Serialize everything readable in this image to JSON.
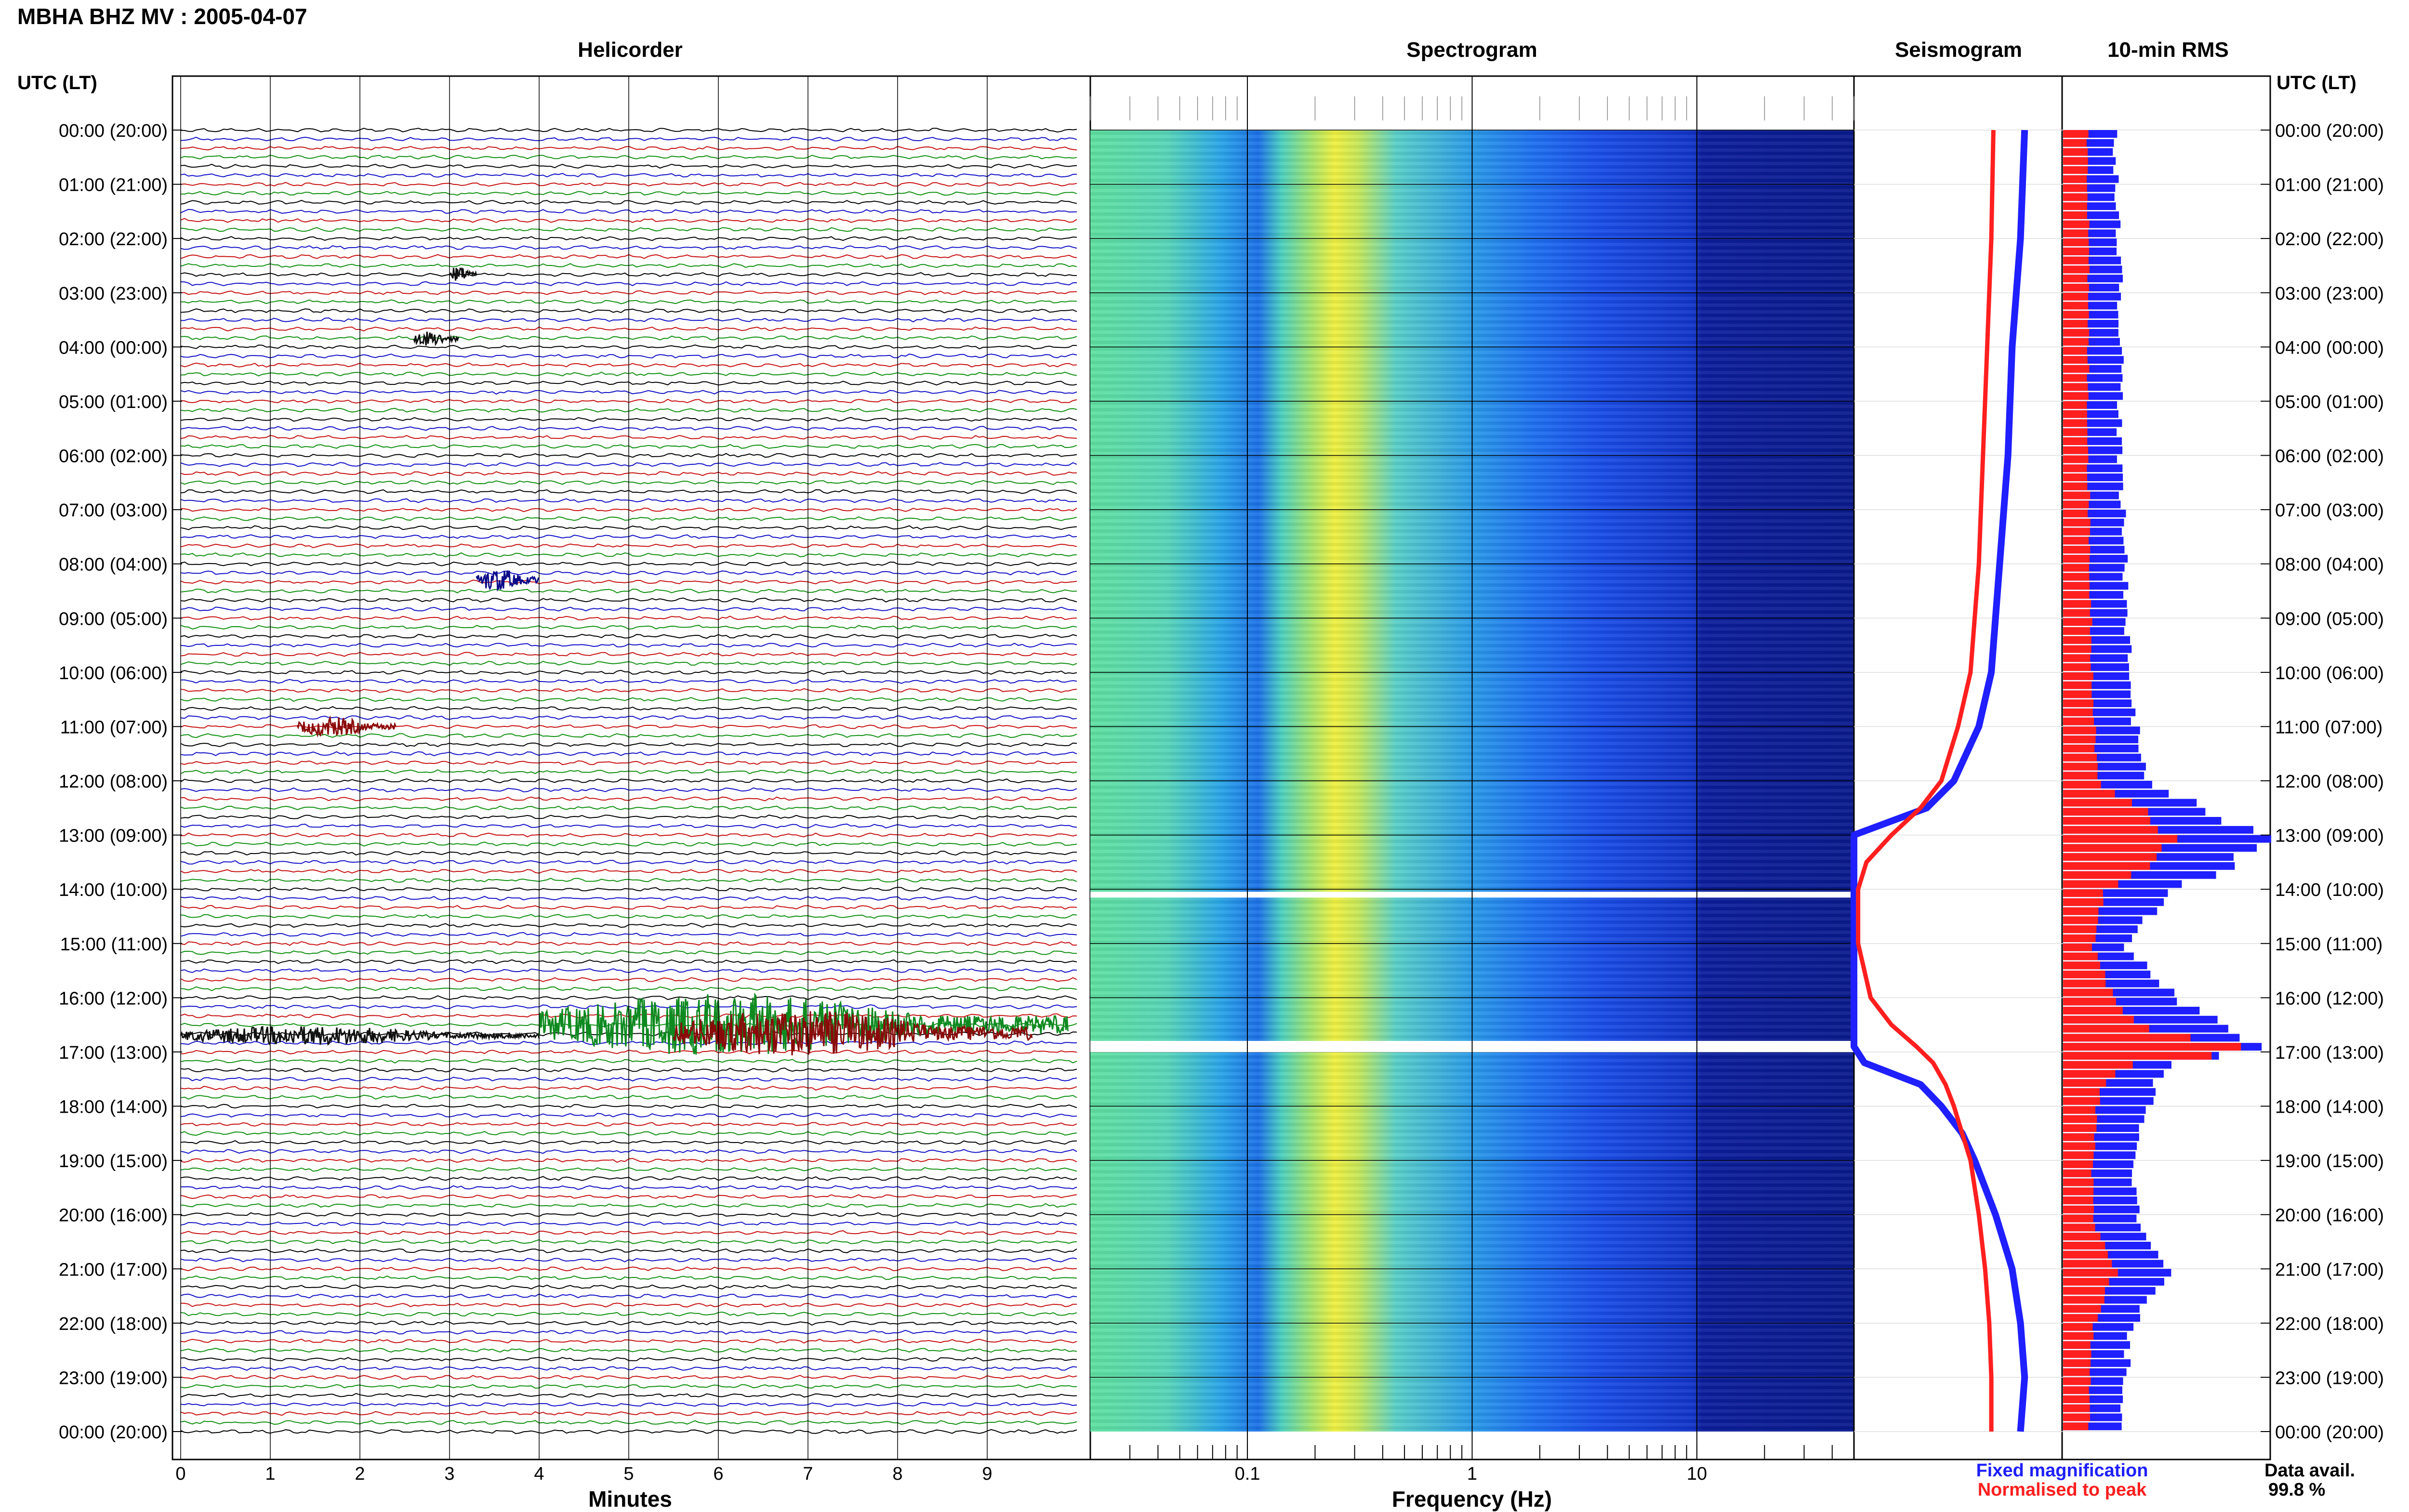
{
  "header": {
    "title": "MBHA BHZ MV : 2005-04-07"
  },
  "panels": {
    "helicorder": "Helicorder",
    "spectrogram": "Spectrogram",
    "seismogram": "Seismogram",
    "rms": "10-min RMS"
  },
  "axes": {
    "utc_lt_left": "UTC (LT)",
    "utc_lt_right": "UTC (LT)",
    "minutes_label": "Minutes",
    "frequency_label": "Frequency (Hz)"
  },
  "legend": {
    "fixed": "Fixed magnification",
    "normalised": "Normalised to peak",
    "fixed_color": "#1f1fff",
    "normalised_color": "#ff1f1f"
  },
  "availability": {
    "label": "Data avail.",
    "value": "99.8 %"
  },
  "chart_data": [
    {
      "type": "line",
      "title": "Helicorder",
      "xlabel": "Minutes",
      "x_ticks": [
        "0",
        "1",
        "2",
        "3",
        "4",
        "5",
        "6",
        "7",
        "8",
        "9"
      ],
      "xlim": [
        0,
        10
      ],
      "rows_per_hour": 6,
      "row_colors": [
        "#000000",
        "#1010c8",
        "#c81010",
        "#109010"
      ],
      "y_ticks_left": [
        "00:00 (20:00)",
        "01:00 (21:00)",
        "02:00 (22:00)",
        "03:00 (23:00)",
        "04:00 (00:00)",
        "05:00 (01:00)",
        "06:00 (02:00)",
        "07:00 (03:00)",
        "08:00 (04:00)",
        "09:00 (05:00)",
        "10:00 (06:00)",
        "11:00 (07:00)",
        "12:00 (08:00)",
        "13:00 (09:00)",
        "14:00 (10:00)",
        "15:00 (11:00)",
        "16:00 (12:00)",
        "17:00 (13:00)",
        "18:00 (14:00)",
        "19:00 (15:00)",
        "20:00 (16:00)",
        "21:00 (17:00)",
        "22:00 (18:00)",
        "23:00 (19:00)",
        "00:00 (20:00)"
      ],
      "events": [
        {
          "hour": 16.7,
          "start_min": 0.0,
          "end_min": 4.0,
          "amplitude": 0.25
        },
        {
          "hour": 16.5,
          "start_min": 4.0,
          "end_min": 9.9,
          "amplitude": 0.8
        },
        {
          "hour": 16.65,
          "start_min": 5.5,
          "end_min": 9.5,
          "amplitude": 0.6
        },
        {
          "hour": 8.3,
          "start_min": 3.3,
          "end_min": 4.0,
          "amplitude": 0.3
        },
        {
          "hour": 11.0,
          "start_min": 1.3,
          "end_min": 2.4,
          "amplitude": 0.25
        },
        {
          "hour": 3.85,
          "start_min": 2.6,
          "end_min": 3.1,
          "amplitude": 0.2
        },
        {
          "hour": 2.65,
          "start_min": 3.0,
          "end_min": 3.3,
          "amplitude": 0.2
        }
      ]
    },
    {
      "type": "heatmap",
      "title": "Spectrogram",
      "xlabel": "Frequency (Hz)",
      "x_scale": "log",
      "xlim": [
        0.02,
        50
      ],
      "x_ticks": [
        0.1,
        1,
        10
      ],
      "x_tick_labels": [
        "0.1",
        "1",
        "10"
      ],
      "peak_frequency_hz": 0.25,
      "gaps_hours": [
        14.1,
        16.85,
        16.95
      ]
    },
    {
      "type": "line",
      "title": "Seismogram",
      "series": [
        {
          "name": "Fixed magnification",
          "color": "#1f1fff",
          "hours": [
            0,
            2,
            4,
            6,
            8,
            10,
            11,
            12,
            12.5,
            13.0,
            13.5,
            14,
            15,
            16,
            16.5,
            16.9,
            17.2,
            17.6,
            18,
            18.5,
            19,
            20,
            21,
            22,
            23,
            24
          ],
          "values": [
            0.82,
            0.8,
            0.76,
            0.74,
            0.7,
            0.66,
            0.6,
            0.48,
            0.35,
            0.0,
            0.0,
            0.0,
            0.0,
            0.0,
            0.0,
            0.0,
            0.05,
            0.32,
            0.42,
            0.52,
            0.58,
            0.68,
            0.76,
            0.8,
            0.82,
            0.8
          ]
        },
        {
          "name": "Normalised to peak",
          "color": "#ff1f1f",
          "hours": [
            0,
            2,
            4,
            6,
            8,
            10,
            11,
            12,
            12.5,
            13.0,
            13.5,
            14,
            15,
            16,
            16.5,
            16.9,
            17.2,
            17.6,
            18,
            18.5,
            19,
            20,
            21,
            22,
            23,
            24
          ],
          "values": [
            0.67,
            0.66,
            0.64,
            0.62,
            0.6,
            0.56,
            0.5,
            0.42,
            0.32,
            0.18,
            0.06,
            0.02,
            0.02,
            0.08,
            0.18,
            0.3,
            0.38,
            0.44,
            0.48,
            0.52,
            0.56,
            0.6,
            0.63,
            0.65,
            0.66,
            0.66
          ]
        }
      ]
    },
    {
      "type": "bar",
      "title": "10-min RMS",
      "orientation": "horizontal",
      "series": [
        {
          "name": "Fixed magnification",
          "color": "#1f1fff",
          "hours": [
            0,
            2,
            4,
            6,
            8,
            10,
            11,
            12,
            12.5,
            13,
            13.5,
            14,
            15,
            16,
            16.5,
            16.9,
            17.1,
            17.5,
            18,
            19,
            20,
            21,
            22,
            23,
            24
          ],
          "values": [
            0.25,
            0.27,
            0.28,
            0.27,
            0.3,
            0.32,
            0.35,
            0.42,
            0.7,
            1.0,
            0.8,
            0.5,
            0.3,
            0.55,
            0.8,
            1.0,
            0.55,
            0.45,
            0.4,
            0.35,
            0.35,
            0.5,
            0.32,
            0.3,
            0.28
          ]
        },
        {
          "name": "Normalised to peak",
          "color": "#ff1f1f",
          "hours": [
            0,
            2,
            4,
            6,
            8,
            10,
            11,
            12,
            12.5,
            13,
            13.5,
            14,
            15,
            16,
            16.5,
            16.9,
            17.1,
            17.5,
            18,
            19,
            20,
            21,
            22,
            23,
            24
          ],
          "values": [
            0.12,
            0.12,
            0.12,
            0.12,
            0.13,
            0.14,
            0.15,
            0.18,
            0.4,
            0.52,
            0.4,
            0.2,
            0.14,
            0.25,
            0.4,
            1.0,
            0.35,
            0.2,
            0.16,
            0.14,
            0.14,
            0.25,
            0.14,
            0.13,
            0.12
          ]
        }
      ]
    }
  ]
}
